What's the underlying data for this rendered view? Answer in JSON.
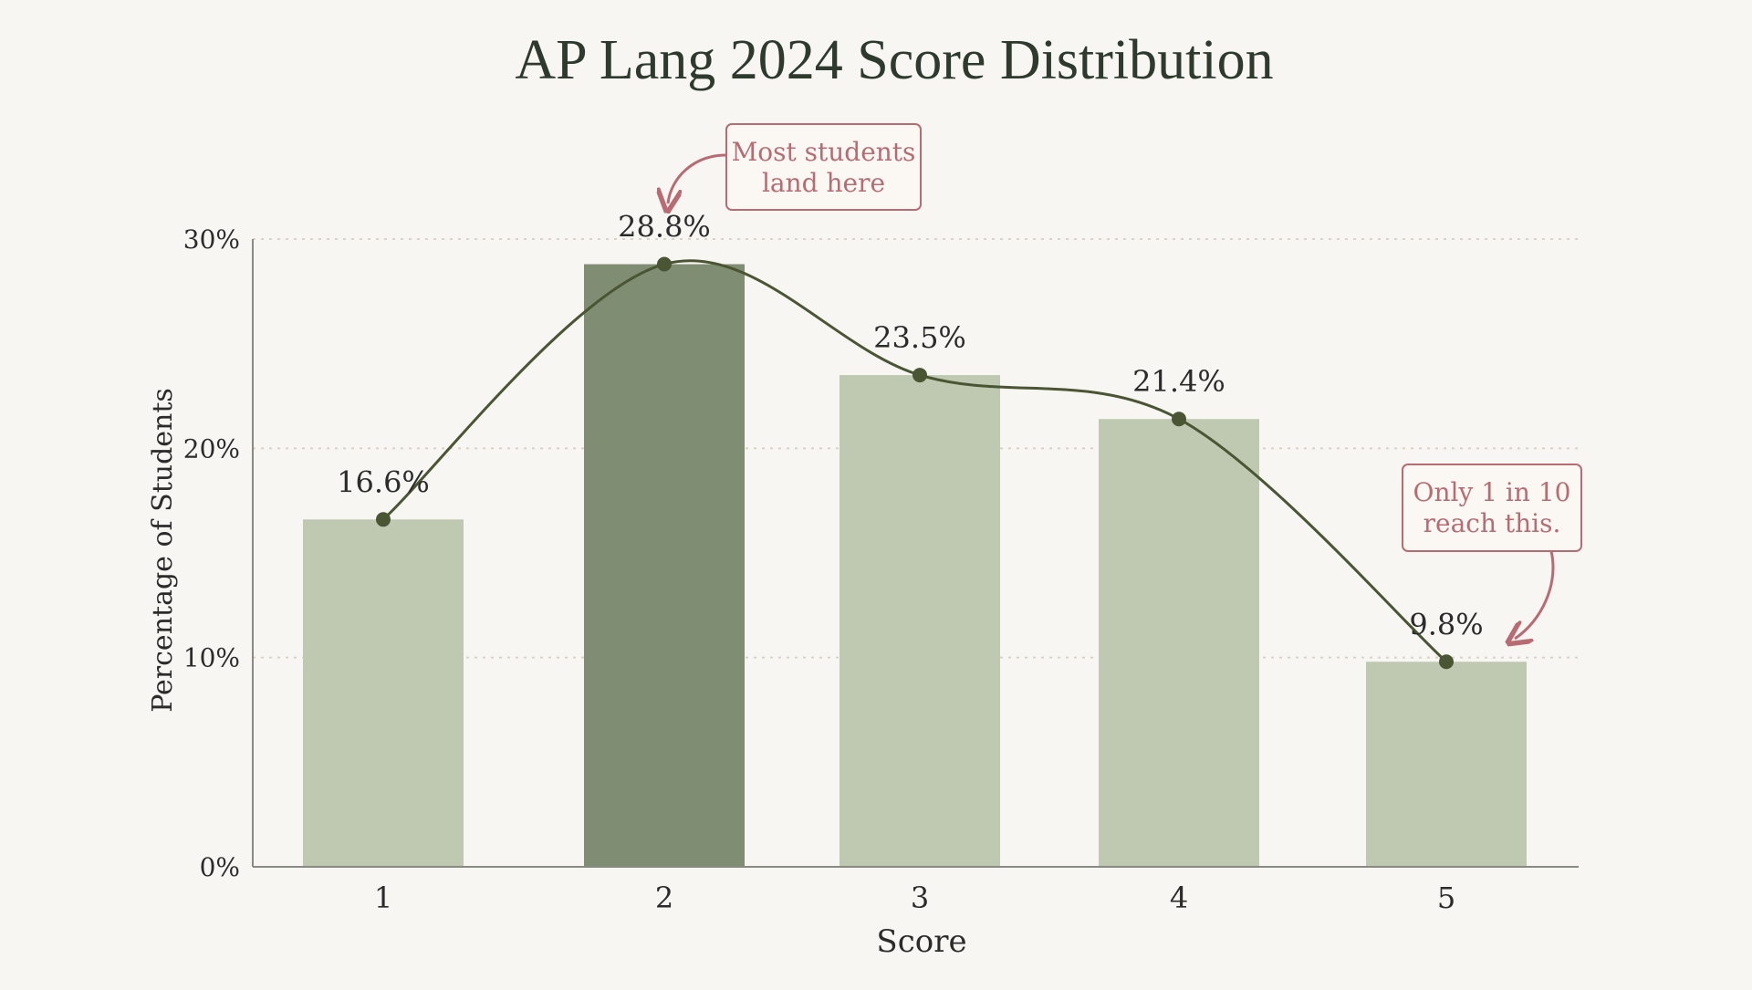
{
  "chart_data": {
    "type": "bar",
    "title": "AP Lang 2024 Score Distribution",
    "xlabel": "Score",
    "ylabel": "Percentage of Students",
    "categories": [
      "1",
      "2",
      "3",
      "4",
      "5"
    ],
    "values": [
      16.6,
      28.8,
      23.5,
      21.4,
      9.8
    ],
    "value_labels": [
      "16.6%",
      "28.8%",
      "23.5%",
      "21.4%",
      "9.8%"
    ],
    "highlight_category": "2",
    "trend_line": {
      "values": [
        16.6,
        28.8,
        23.5,
        21.4,
        9.8
      ],
      "smooth": true
    },
    "ylim": [
      0,
      30
    ],
    "yticks": [
      0,
      10,
      20,
      30
    ],
    "ytick_labels": [
      "0%",
      "10%",
      "20%",
      "30%"
    ],
    "grid": "horizontal dotted",
    "annotations": [
      {
        "text_lines": [
          "Most students",
          "land here"
        ],
        "target_category": "2"
      },
      {
        "text_lines": [
          "Only 1 in 10",
          "reach this."
        ],
        "target_category": "5"
      }
    ],
    "colors": {
      "background": "#f8f6f2",
      "bar": "#bfc9b1",
      "bar_highlight": "#7f8d72",
      "line": "#4a5534",
      "marker": "#4a5534",
      "annotation": "#b86b72",
      "grid": "#d9d3c6",
      "axis": "#8a8a85",
      "text": "#2b2b2b",
      "title": "#2d3a2d"
    }
  }
}
